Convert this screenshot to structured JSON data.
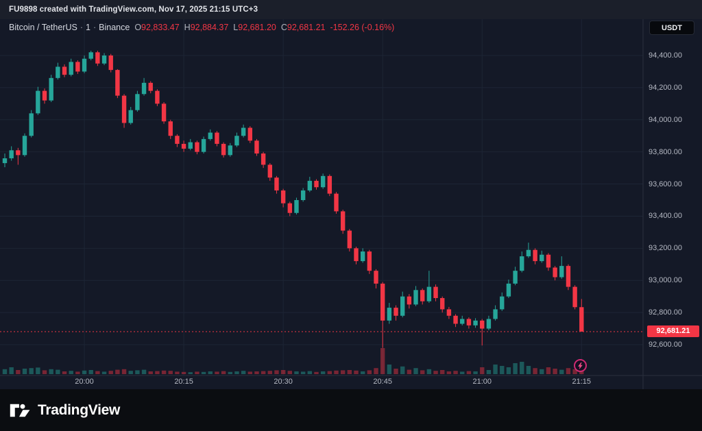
{
  "topbar": {
    "watermark": "FU9898 created with TradingView.com, Nov 17, 2025 21:15 UTC+3"
  },
  "legend": {
    "symbol": "Bitcoin / TetherUS",
    "separator": "·",
    "interval": "1",
    "exchange": "Binance",
    "o_label": "O",
    "o_value": "92,833.47",
    "h_label": "H",
    "h_value": "92,884.37",
    "l_label": "L",
    "l_value": "92,681.20",
    "c_label": "C",
    "c_value": "92,681.21",
    "change": "-152.26 (-0.16%)"
  },
  "header": {
    "currency_button": "USDT"
  },
  "price_axis": {
    "labels": [
      "94,400.00",
      "94,200.00",
      "94,000.00",
      "93,800.00",
      "93,600.00",
      "93,400.00",
      "93,200.00",
      "93,000.00",
      "92,800.00",
      "92,600.00"
    ],
    "last_price_label": "92,681.21"
  },
  "time_axis": {
    "labels": [
      "20:00",
      "20:15",
      "20:30",
      "20:45",
      "21:00",
      "21:15"
    ]
  },
  "footer": {
    "logo_text": "TradingView"
  },
  "icons": {
    "flash_icon": "lightning"
  },
  "colors": {
    "up": "#26a69a",
    "down": "#f23645",
    "grid": "#1d2535",
    "divider": "#2a2f3d",
    "bg": "#141927",
    "axis_text": "#b6bac4",
    "badge_bg": "#f23645",
    "accent_blue": "#2962ff"
  },
  "chart_data": {
    "type": "candlestick",
    "symbol": "Bitcoin / TetherUS",
    "interval": "1",
    "exchange": "Binance",
    "last_price": 92681.21,
    "price_ticks": [
      94400,
      94200,
      94000,
      93800,
      93600,
      93400,
      93200,
      93000,
      92800,
      92600
    ],
    "time_tick_indices": [
      12,
      27,
      42,
      57,
      72,
      87
    ],
    "ylim": [
      92400,
      94520
    ],
    "grid": true,
    "volume_scale_note": "volumes are relative 0-100",
    "candles": [
      [
        "19:48",
        93730,
        93790,
        93705,
        93760,
        18
      ],
      [
        "19:49",
        93760,
        93835,
        93745,
        93810,
        25
      ],
      [
        "19:50",
        93810,
        93825,
        93720,
        93780,
        15
      ],
      [
        "19:51",
        93780,
        93915,
        93770,
        93900,
        20
      ],
      [
        "19:52",
        93900,
        94060,
        93890,
        94040,
        22
      ],
      [
        "19:53",
        94040,
        94205,
        94030,
        94180,
        24
      ],
      [
        "19:54",
        94180,
        94195,
        94100,
        94120,
        14
      ],
      [
        "19:55",
        94120,
        94280,
        94110,
        94260,
        18
      ],
      [
        "19:56",
        94260,
        94355,
        94250,
        94330,
        16
      ],
      [
        "19:57",
        94330,
        94345,
        94265,
        94280,
        10
      ],
      [
        "19:58",
        94280,
        94380,
        94270,
        94360,
        12
      ],
      [
        "19:59",
        94360,
        94370,
        94285,
        94300,
        9
      ],
      [
        "20:00",
        94300,
        94400,
        94290,
        94380,
        13
      ],
      [
        "20:01",
        94380,
        94430,
        94370,
        94420,
        15
      ],
      [
        "20:02",
        94420,
        94430,
        94335,
        94350,
        11
      ],
      [
        "20:03",
        94350,
        94415,
        94340,
        94400,
        9
      ],
      [
        "20:04",
        94400,
        94410,
        94295,
        94310,
        12
      ],
      [
        "20:05",
        94310,
        94315,
        94135,
        94150,
        16
      ],
      [
        "20:06",
        94150,
        94160,
        93950,
        93980,
        18
      ],
      [
        "20:07",
        93980,
        94080,
        93970,
        94060,
        12
      ],
      [
        "20:08",
        94060,
        94180,
        94050,
        94160,
        14
      ],
      [
        "20:09",
        94160,
        94260,
        94150,
        94230,
        16
      ],
      [
        "20:10",
        94230,
        94240,
        94165,
        94180,
        10
      ],
      [
        "20:11",
        94180,
        94190,
        94085,
        94100,
        11
      ],
      [
        "20:12",
        94100,
        94110,
        93975,
        93990,
        13
      ],
      [
        "20:13",
        93990,
        94000,
        93880,
        93900,
        12
      ],
      [
        "20:14",
        93900,
        93910,
        93830,
        93850,
        9
      ],
      [
        "20:15",
        93850,
        93870,
        93800,
        93820,
        8
      ],
      [
        "20:16",
        93820,
        93880,
        93810,
        93860,
        7
      ],
      [
        "20:17",
        93860,
        93870,
        93785,
        93800,
        9
      ],
      [
        "20:18",
        93800,
        93895,
        93790,
        93880,
        8
      ],
      [
        "20:19",
        93880,
        93940,
        93870,
        93920,
        10
      ],
      [
        "20:20",
        93920,
        93930,
        93835,
        93850,
        9
      ],
      [
        "20:21",
        93850,
        93860,
        93765,
        93780,
        11
      ],
      [
        "20:22",
        93780,
        93855,
        93770,
        93840,
        8
      ],
      [
        "20:23",
        93840,
        93920,
        93830,
        93900,
        10
      ],
      [
        "20:24",
        93900,
        93970,
        93890,
        93950,
        12
      ],
      [
        "20:25",
        93950,
        93960,
        93855,
        93870,
        9
      ],
      [
        "20:26",
        93870,
        93880,
        93775,
        93790,
        10
      ],
      [
        "20:27",
        93790,
        93800,
        93700,
        93720,
        11
      ],
      [
        "20:28",
        93720,
        93730,
        93620,
        93640,
        12
      ],
      [
        "20:29",
        93640,
        93650,
        93540,
        93560,
        14
      ],
      [
        "20:30",
        93560,
        93570,
        93455,
        93480,
        15
      ],
      [
        "20:31",
        93480,
        93490,
        93400,
        93420,
        12
      ],
      [
        "20:32",
        93420,
        93515,
        93410,
        93500,
        10
      ],
      [
        "20:33",
        93500,
        93575,
        93490,
        93560,
        9
      ],
      [
        "20:34",
        93560,
        93645,
        93550,
        93620,
        11
      ],
      [
        "20:35",
        93620,
        93630,
        93565,
        93580,
        8
      ],
      [
        "20:36",
        93580,
        93665,
        93570,
        93650,
        10
      ],
      [
        "20:37",
        93650,
        93660,
        93525,
        93540,
        11
      ],
      [
        "20:38",
        93540,
        93550,
        93415,
        93430,
        13
      ],
      [
        "20:39",
        93430,
        93440,
        93290,
        93310,
        14
      ],
      [
        "20:40",
        93310,
        93320,
        93180,
        93200,
        15
      ],
      [
        "20:41",
        93200,
        93210,
        93100,
        93120,
        13
      ],
      [
        "20:42",
        93120,
        93200,
        93110,
        93180,
        10
      ],
      [
        "20:43",
        93180,
        93190,
        93040,
        93060,
        14
      ],
      [
        "20:44",
        93060,
        93070,
        92950,
        92980,
        22
      ],
      [
        "20:45",
        92980,
        92990,
        92580,
        92750,
        95
      ],
      [
        "20:46",
        92750,
        92860,
        92730,
        92830,
        35
      ],
      [
        "20:47",
        92830,
        92845,
        92750,
        92780,
        20
      ],
      [
        "20:48",
        92780,
        92930,
        92770,
        92900,
        28
      ],
      [
        "20:49",
        92900,
        92915,
        92825,
        92850,
        16
      ],
      [
        "20:50",
        92850,
        92965,
        92840,
        92940,
        22
      ],
      [
        "20:51",
        92940,
        92950,
        92850,
        92870,
        14
      ],
      [
        "20:52",
        92870,
        93060,
        92860,
        92960,
        18
      ],
      [
        "20:53",
        92960,
        92975,
        92870,
        92890,
        12
      ],
      [
        "20:54",
        92890,
        92900,
        92800,
        92820,
        15
      ],
      [
        "20:55",
        92820,
        92835,
        92760,
        92780,
        10
      ],
      [
        "20:56",
        92780,
        92790,
        92710,
        92730,
        12
      ],
      [
        "20:57",
        92730,
        92780,
        92720,
        92760,
        9
      ],
      [
        "20:58",
        92760,
        92770,
        92700,
        92720,
        11
      ],
      [
        "20:59",
        92720,
        92765,
        92705,
        92750,
        10
      ],
      [
        "21:00",
        92750,
        92760,
        92595,
        92700,
        25
      ],
      [
        "21:01",
        92700,
        92780,
        92690,
        92760,
        15
      ],
      [
        "21:02",
        92760,
        92845,
        92750,
        92820,
        35
      ],
      [
        "21:03",
        92820,
        92925,
        92810,
        92900,
        30
      ],
      [
        "21:04",
        92900,
        93005,
        92890,
        92980,
        25
      ],
      [
        "21:05",
        92980,
        93085,
        92970,
        93060,
        40
      ],
      [
        "21:06",
        93060,
        93180,
        93050,
        93150,
        45
      ],
      [
        "21:07",
        93150,
        93235,
        93140,
        93190,
        30
      ],
      [
        "21:08",
        93190,
        93200,
        93100,
        93120,
        22
      ],
      [
        "21:09",
        93120,
        93185,
        93110,
        93160,
        18
      ],
      [
        "21:10",
        93160,
        93170,
        93060,
        93080,
        25
      ],
      [
        "21:11",
        93080,
        93090,
        93000,
        93020,
        20
      ],
      [
        "21:12",
        93020,
        93150,
        93010,
        93090,
        16
      ],
      [
        "21:13",
        93090,
        93100,
        92940,
        92960,
        22
      ],
      [
        "21:14",
        92960,
        92970,
        92820,
        92833.47,
        18
      ],
      [
        "21:15",
        92833.47,
        92884.37,
        92681.2,
        92681.21,
        20
      ]
    ]
  }
}
